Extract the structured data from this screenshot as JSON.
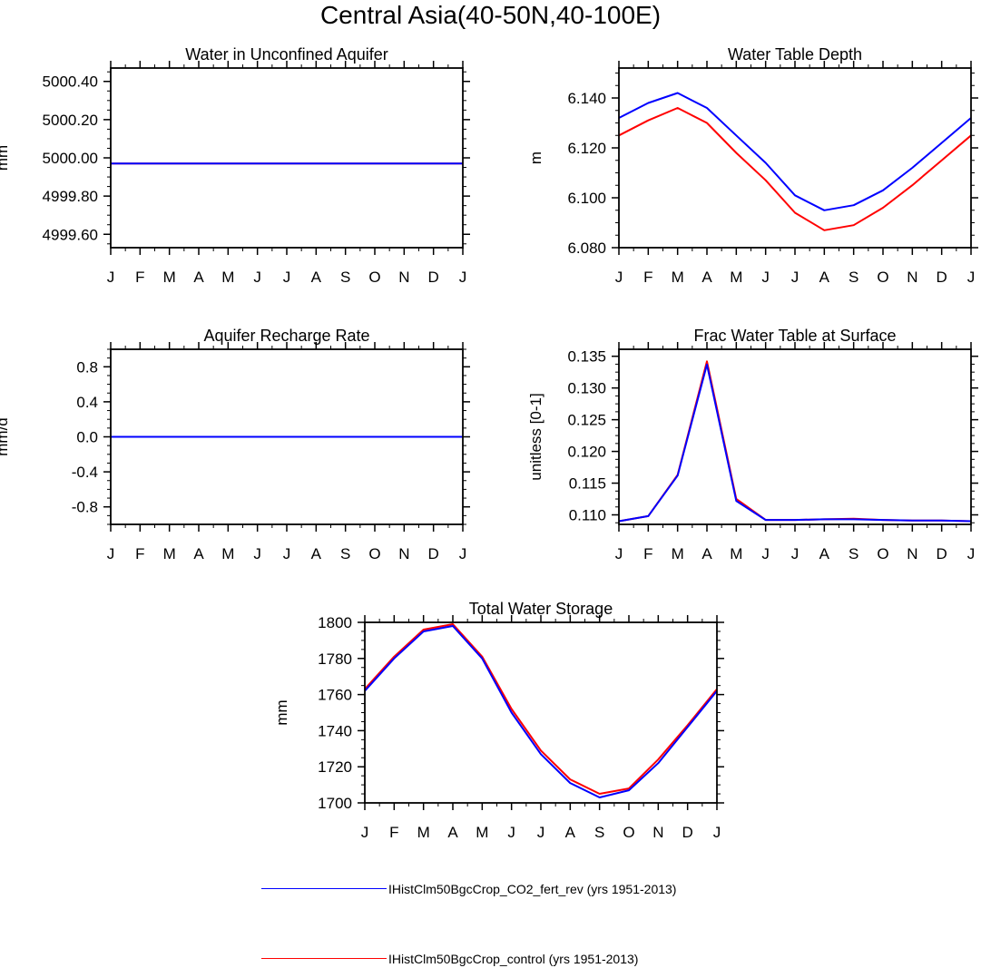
{
  "title": "Central Asia(40-50N,40-100E)",
  "colors": {
    "blue": "#0000ff",
    "red": "#ff0000"
  },
  "legend": [
    {
      "label": "IHistClm50BgcCrop_CO2_fert_rev (yrs 1951-2013)",
      "color": "#0000ff"
    },
    {
      "label": "IHistClm50BgcCrop_control (yrs 1951-2013)",
      "color": "#ff0000"
    }
  ],
  "chart_data": [
    {
      "type": "line",
      "title": "Water in Unconfined Aquifer",
      "xlabel": "",
      "ylabel": "mm",
      "categories": [
        "J",
        "F",
        "M",
        "A",
        "M",
        "J",
        "J",
        "A",
        "S",
        "O",
        "N",
        "D",
        "J"
      ],
      "ylim": [
        4999.53,
        5000.47
      ],
      "yticks": [
        4999.6,
        4999.8,
        5000.0,
        5000.2,
        5000.4
      ],
      "ytick_labels": [
        "4999.60",
        "4999.80",
        "5000.00",
        "5000.20",
        "5000.40"
      ],
      "series": [
        {
          "color": "#ff0000",
          "values": [
            4999.97,
            4999.97,
            4999.97,
            4999.97,
            4999.97,
            4999.97,
            4999.97,
            4999.97,
            4999.97,
            4999.97,
            4999.97,
            4999.97,
            4999.97
          ]
        },
        {
          "color": "#0000ff",
          "values": [
            4999.97,
            4999.97,
            4999.97,
            4999.97,
            4999.97,
            4999.97,
            4999.97,
            4999.97,
            4999.97,
            4999.97,
            4999.97,
            4999.97,
            4999.97
          ]
        }
      ]
    },
    {
      "type": "line",
      "title": "Water Table Depth",
      "xlabel": "",
      "ylabel": "m",
      "categories": [
        "J",
        "F",
        "M",
        "A",
        "M",
        "J",
        "J",
        "A",
        "S",
        "O",
        "N",
        "D",
        "J"
      ],
      "ylim": [
        6.08,
        6.152
      ],
      "yticks": [
        6.08,
        6.1,
        6.12,
        6.14
      ],
      "ytick_labels": [
        "6.080",
        "6.100",
        "6.120",
        "6.140"
      ],
      "series": [
        {
          "color": "#ff0000",
          "values": [
            6.125,
            6.131,
            6.136,
            6.13,
            6.118,
            6.107,
            6.094,
            6.087,
            6.089,
            6.096,
            6.105,
            6.115,
            6.125
          ]
        },
        {
          "color": "#0000ff",
          "values": [
            6.132,
            6.138,
            6.142,
            6.136,
            6.125,
            6.114,
            6.101,
            6.095,
            6.097,
            6.103,
            6.112,
            6.122,
            6.132
          ]
        }
      ]
    },
    {
      "type": "line",
      "title": "Aquifer Recharge Rate",
      "xlabel": "",
      "ylabel": "mm/d",
      "categories": [
        "J",
        "F",
        "M",
        "A",
        "M",
        "J",
        "J",
        "A",
        "S",
        "O",
        "N",
        "D",
        "J"
      ],
      "ylim": [
        -1.0,
        1.0
      ],
      "yticks": [
        -0.8,
        -0.4,
        0.0,
        0.4,
        0.8
      ],
      "ytick_labels": [
        "-0.8",
        "-0.4",
        "0.0",
        "0.4",
        "0.8"
      ],
      "series": [
        {
          "color": "#ff0000",
          "values": [
            0,
            0,
            0,
            0,
            0,
            0,
            0,
            0,
            0,
            0,
            0,
            0,
            0
          ]
        },
        {
          "color": "#0000ff",
          "values": [
            0,
            0,
            0,
            0,
            0,
            0,
            0,
            0,
            0,
            0,
            0,
            0,
            0
          ]
        }
      ]
    },
    {
      "type": "line",
      "title": "Frac Water Table at Surface",
      "xlabel": "",
      "ylabel": "unitless [0-1]",
      "categories": [
        "J",
        "F",
        "M",
        "A",
        "M",
        "J",
        "J",
        "A",
        "S",
        "O",
        "N",
        "D",
        "J"
      ],
      "ylim": [
        0.1085,
        0.1361
      ],
      "yticks": [
        0.11,
        0.115,
        0.12,
        0.125,
        0.13,
        0.135
      ],
      "ytick_labels": [
        "0.110",
        "0.115",
        "0.120",
        "0.125",
        "0.130",
        "0.135"
      ],
      "series": [
        {
          "color": "#ff0000",
          "values": [
            0.109,
            0.1098,
            0.1163,
            0.1342,
            0.1125,
            0.1092,
            0.1092,
            0.1093,
            0.1094,
            0.1092,
            0.1091,
            0.1091,
            0.109
          ]
        },
        {
          "color": "#0000ff",
          "values": [
            0.109,
            0.1098,
            0.1162,
            0.1337,
            0.1122,
            0.1092,
            0.1092,
            0.1093,
            0.1093,
            0.1092,
            0.1091,
            0.1091,
            0.109
          ]
        }
      ]
    },
    {
      "type": "line",
      "title": "Total Water Storage",
      "xlabel": "",
      "ylabel": "mm",
      "categories": [
        "J",
        "F",
        "M",
        "A",
        "M",
        "J",
        "J",
        "A",
        "S",
        "O",
        "N",
        "D",
        "J"
      ],
      "ylim": [
        1700,
        1800
      ],
      "yticks": [
        1700,
        1720,
        1740,
        1760,
        1780,
        1800
      ],
      "ytick_labels": [
        "1700",
        "1720",
        "1740",
        "1760",
        "1780",
        "1800"
      ],
      "series": [
        {
          "color": "#ff0000",
          "values": [
            1763,
            1781,
            1796,
            1799,
            1781,
            1752,
            1729,
            1713,
            1705,
            1708,
            1724,
            1743,
            1763
          ]
        },
        {
          "color": "#0000ff",
          "values": [
            1762,
            1780,
            1795,
            1798,
            1780,
            1750,
            1727,
            1711,
            1703,
            1707,
            1722,
            1742,
            1762
          ]
        }
      ]
    }
  ]
}
